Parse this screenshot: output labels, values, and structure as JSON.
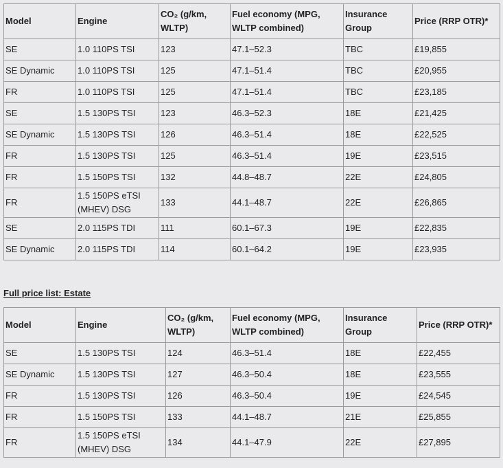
{
  "table1": {
    "header": [
      "Model",
      "Engine",
      "CO₂ (g/km, WLTP)",
      "Fuel economy (MPG, WLTP combined)",
      "Insurance Group",
      "Price (RRP OTR)*"
    ],
    "rows": [
      [
        "SE",
        "1.0 110PS TSI",
        "123",
        "47.1–52.3",
        "TBC",
        "£19,855"
      ],
      [
        "SE Dynamic",
        "1.0 110PS TSI",
        "125",
        "47.1–51.4",
        "TBC",
        "£20,955"
      ],
      [
        "FR",
        "1.0 110PS TSI",
        "125",
        "47.1–51.4",
        "TBC",
        "£23,185"
      ],
      [
        "SE",
        "1.5 130PS TSI",
        "123",
        "46.3–52.3",
        "18E",
        "£21,425"
      ],
      [
        "SE Dynamic",
        "1.5 130PS TSI",
        "126",
        "46.3–51.4",
        "18E",
        "£22,525"
      ],
      [
        "FR",
        "1.5 130PS TSI",
        "125",
        "46.3–51.4",
        "19E",
        "£23,515"
      ],
      [
        "FR",
        "1.5 150PS TSI",
        "132",
        "44.8–48.7",
        "22E",
        "£24,805"
      ],
      [
        "FR",
        "1.5 150PS eTSI (MHEV) DSG",
        "133",
        "44.1–48.7",
        "22E",
        "£26,865"
      ],
      [
        "SE",
        "2.0 115PS TDI",
        "111",
        "60.1–67.3",
        "19E",
        "£22,835"
      ],
      [
        "SE Dynamic",
        "2.0 115PS TDI",
        "114",
        "60.1–64.2",
        "19E",
        "£23,935"
      ]
    ]
  },
  "heading": "Full price list: Estate",
  "table2": {
    "header": [
      "Model",
      "Engine",
      "CO₂ (g/km, WLTP)",
      "Fuel economy (MPG, WLTP combined)",
      "Insurance Group",
      "Price (RRP OTR)*"
    ],
    "rows": [
      [
        "SE",
        "1.5 130PS TSI",
        "124",
        "46.3–51.4",
        "18E",
        "£22,455"
      ],
      [
        "SE Dynamic",
        "1.5 130PS TSI",
        "127",
        "46.3–50.4",
        "18E",
        "£23,555"
      ],
      [
        "FR",
        "1.5 130PS TSI",
        "126",
        "46.3–50.4",
        "19E",
        "£24,545"
      ],
      [
        "FR",
        "1.5 150PS TSI",
        "133",
        "44.1–48.7",
        "21E",
        "£25,855"
      ],
      [
        "FR",
        "1.5 150PS eTSI (MHEV) DSG",
        "134",
        "44.1–47.9",
        "22E",
        "£27,895"
      ]
    ]
  }
}
